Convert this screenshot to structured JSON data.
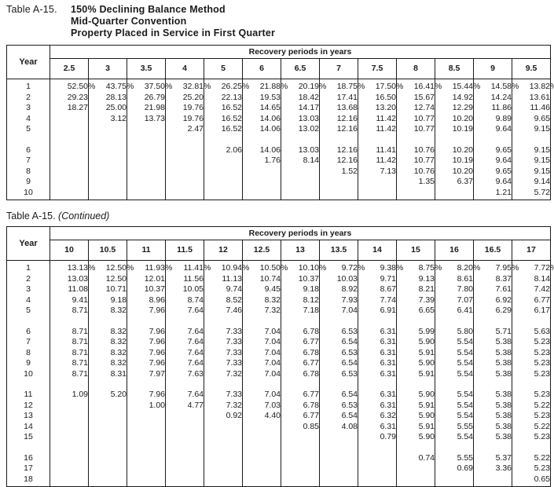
{
  "colors": {
    "ink": "#1b1b1b",
    "paper": "#ffffff"
  },
  "common": {
    "year_header": "Year",
    "span_header": "Recovery periods in years"
  },
  "table1": {
    "label": "Table A-15.",
    "title_lines": [
      "150% Declining Balance Method",
      "Mid-Quarter Convention",
      "Property Placed in Service in First Quarter"
    ],
    "columns": [
      "2.5",
      "3",
      "3.5",
      "4",
      "5",
      "6",
      "6.5",
      "7",
      "7.5",
      "8",
      "8.5",
      "9",
      "9.5"
    ],
    "rows": [
      {
        "year": "1",
        "values": [
          "52.50%",
          "43.75%",
          "37.50%",
          "32.81%",
          "26.25%",
          "21.88%",
          "20.19%",
          "18.75%",
          "17.50%",
          "16.41%",
          "15.44%",
          "14.58%",
          "13.82%"
        ]
      },
      {
        "year": "2",
        "values": [
          "29.23",
          "28.13",
          "26.79",
          "25.20",
          "22.13",
          "19.53",
          "18.42",
          "17.41",
          "16.50",
          "15.67",
          "14.92",
          "14.24",
          "13.61"
        ]
      },
      {
        "year": "3",
        "values": [
          "18.27",
          "25.00",
          "21.98",
          "19.76",
          "16.52",
          "14.65",
          "14.17",
          "13.68",
          "13.20",
          "12.74",
          "12.29",
          "11.86",
          "11.46"
        ]
      },
      {
        "year": "4",
        "values": [
          "",
          "3.12",
          "13.73",
          "19.76",
          "16.52",
          "14.06",
          "13.03",
          "12.16",
          "11.42",
          "10.77",
          "10.20",
          "9.89",
          "9.65"
        ]
      },
      {
        "year": "5",
        "values": [
          "",
          "",
          "",
          "2.47",
          "16.52",
          "14.06",
          "13.02",
          "12.16",
          "11.42",
          "10.77",
          "10.19",
          "9.64",
          "9.15"
        ]
      },
      {
        "gap": true
      },
      {
        "year": "6",
        "values": [
          "",
          "",
          "",
          "",
          "2.06",
          "14.06",
          "13.03",
          "12.16",
          "11.41",
          "10.76",
          "10.20",
          "9.65",
          "9.15"
        ]
      },
      {
        "year": "7",
        "values": [
          "",
          "",
          "",
          "",
          "",
          "1.76",
          "8.14",
          "12.16",
          "11.42",
          "10.77",
          "10.19",
          "9.64",
          "9.15"
        ]
      },
      {
        "year": "8",
        "values": [
          "",
          "",
          "",
          "",
          "",
          "",
          "",
          "1.52",
          "7.13",
          "10.76",
          "10.20",
          "9.65",
          "9.15"
        ]
      },
      {
        "year": "9",
        "values": [
          "",
          "",
          "",
          "",
          "",
          "",
          "",
          "",
          "",
          "1.35",
          "6.37",
          "9.64",
          "9.14"
        ]
      },
      {
        "year": "10",
        "values": [
          "",
          "",
          "",
          "",
          "",
          "",
          "",
          "",
          "",
          "",
          "",
          "1.21",
          "5.72"
        ]
      }
    ]
  },
  "table2": {
    "label": "Table A-15.",
    "continued": "(Continued)",
    "columns": [
      "10",
      "10.5",
      "11",
      "11.5",
      "12",
      "12.5",
      "13",
      "13.5",
      "14",
      "15",
      "16",
      "16.5",
      "17"
    ],
    "rows": [
      {
        "year": "1",
        "values": [
          "13.13%",
          "12.50%",
          "11.93%",
          "11.41%",
          "10.94%",
          "10.50%",
          "10.10%",
          "9.72%",
          "9.38%",
          "8.75%",
          "8.20%",
          "7.95%",
          "7.72%"
        ]
      },
      {
        "year": "2",
        "values": [
          "13.03",
          "12.50",
          "12.01",
          "11.56",
          "11.13",
          "10.74",
          "10.37",
          "10.03",
          "9.71",
          "9.13",
          "8.61",
          "8.37",
          "8.14"
        ]
      },
      {
        "year": "3",
        "values": [
          "11.08",
          "10.71",
          "10.37",
          "10.05",
          "9.74",
          "9.45",
          "9.18",
          "8.92",
          "8.67",
          "8.21",
          "7.80",
          "7.61",
          "7.42"
        ]
      },
      {
        "year": "4",
        "values": [
          "9.41",
          "9.18",
          "8.96",
          "8.74",
          "8.52",
          "8.32",
          "8.12",
          "7.93",
          "7.74",
          "7.39",
          "7.07",
          "6.92",
          "6.77"
        ]
      },
      {
        "year": "5",
        "values": [
          "8.71",
          "8.32",
          "7.96",
          "7.64",
          "7.46",
          "7.32",
          "7.18",
          "7.04",
          "6.91",
          "6.65",
          "6.41",
          "6.29",
          "6.17"
        ]
      },
      {
        "gap": true
      },
      {
        "year": "6",
        "values": [
          "8.71",
          "8.32",
          "7.96",
          "7.64",
          "7.33",
          "7.04",
          "6.78",
          "6.53",
          "6.31",
          "5.99",
          "5.80",
          "5.71",
          "5.63"
        ]
      },
      {
        "year": "7",
        "values": [
          "8.71",
          "8.32",
          "7.96",
          "7.64",
          "7.33",
          "7.04",
          "6.77",
          "6.54",
          "6.31",
          "5.90",
          "5.54",
          "5.38",
          "5.23"
        ]
      },
      {
        "year": "8",
        "values": [
          "8.71",
          "8.32",
          "7.96",
          "7.64",
          "7.33",
          "7.04",
          "6.78",
          "6.53",
          "6.31",
          "5.91",
          "5.54",
          "5.38",
          "5.23"
        ]
      },
      {
        "year": "9",
        "values": [
          "8.71",
          "8.32",
          "7.96",
          "7.64",
          "7.33",
          "7.04",
          "6.77",
          "6.54",
          "6.31",
          "5.90",
          "5.54",
          "5.38",
          "5.23"
        ]
      },
      {
        "year": "10",
        "values": [
          "8.71",
          "8.31",
          "7.97",
          "7.63",
          "7.32",
          "7.04",
          "6.78",
          "6.53",
          "6.31",
          "5.91",
          "5.54",
          "5.38",
          "5.23"
        ]
      },
      {
        "gap": true
      },
      {
        "year": "11",
        "values": [
          "1.09",
          "5.20",
          "7.96",
          "7.64",
          "7.33",
          "7.04",
          "6.77",
          "6.54",
          "6.31",
          "5.90",
          "5.54",
          "5.38",
          "5.23"
        ]
      },
      {
        "year": "12",
        "values": [
          "",
          "",
          "1.00",
          "4.77",
          "7.32",
          "7.03",
          "6.78",
          "6.53",
          "6.31",
          "5.91",
          "5.54",
          "5.38",
          "5.22"
        ]
      },
      {
        "year": "13",
        "values": [
          "",
          "",
          "",
          "",
          "0.92",
          "4.40",
          "6.77",
          "6.54",
          "6.32",
          "5.90",
          "5.54",
          "5.38",
          "5.23"
        ]
      },
      {
        "year": "14",
        "values": [
          "",
          "",
          "",
          "",
          "",
          "",
          "0.85",
          "4.08",
          "6.31",
          "5.91",
          "5.55",
          "5.38",
          "5.22"
        ]
      },
      {
        "year": "15",
        "values": [
          "",
          "",
          "",
          "",
          "",
          "",
          "",
          "",
          "0.79",
          "5.90",
          "5.54",
          "5.38",
          "5.23"
        ]
      },
      {
        "gap": true
      },
      {
        "year": "16",
        "values": [
          "",
          "",
          "",
          "",
          "",
          "",
          "",
          "",
          "",
          "0.74",
          "5.55",
          "5.37",
          "5.22"
        ]
      },
      {
        "year": "17",
        "values": [
          "",
          "",
          "",
          "",
          "",
          "",
          "",
          "",
          "",
          "",
          "0.69",
          "3.36",
          "5.23"
        ]
      },
      {
        "year": "18",
        "values": [
          "",
          "",
          "",
          "",
          "",
          "",
          "",
          "",
          "",
          "",
          "",
          "",
          "0.65"
        ]
      }
    ]
  }
}
